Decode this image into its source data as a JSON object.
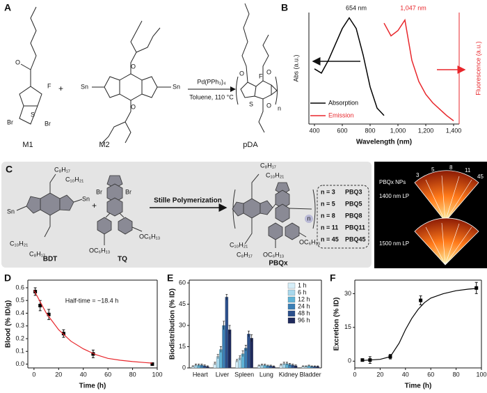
{
  "panel_a": {
    "label": "A",
    "monomers": [
      "M1",
      "M2"
    ],
    "product": "pDA",
    "plus": "+",
    "catalyst": "Pd(PPh₃)₄",
    "conditions": "Toluene, 110 °C",
    "atoms": [
      "F",
      "S",
      "Br",
      "Br",
      "O",
      "O",
      "O",
      "Sn",
      "Sn",
      "O",
      "F",
      "S",
      "O",
      "O",
      "n"
    ]
  },
  "panel_c": {
    "label": "C",
    "monomers": [
      "BDT",
      "TQ"
    ],
    "plus": "+",
    "reaction": "Stille Polymerization",
    "product": "PBQx",
    "variants": [
      [
        "n = 3",
        "PBQ3"
      ],
      [
        "n = 5",
        "PBQ5"
      ],
      [
        "n = 8",
        "PBQ8"
      ],
      [
        "n = 11",
        "PBQ11"
      ],
      [
        "n = 45",
        "PBQ45"
      ]
    ],
    "groups": [
      "C₈H₁₇",
      "C₁₀H₂₁",
      "C₁₀H₂₁",
      "C₈H₁₇",
      "Sn",
      "Sn",
      "Br",
      "Br",
      "OC₆H₁₃",
      "OC₆H₁₃",
      "C₈H₁₇",
      "C₁₀H₂₁",
      "C₁₀H₂₁",
      "C₈H₁₇",
      "OC₆H₁₃",
      "OC₆H₁₃",
      "n"
    ]
  },
  "inset": {
    "title": "PBQx NPs",
    "filters": [
      "1400 nm LP",
      "1500 nm LP"
    ],
    "numbers": [
      "3",
      "5",
      "8",
      "11",
      "45"
    ]
  },
  "chart_data": [
    {
      "type": "line",
      "label": "B",
      "xlabel": "Wavelength (nm)",
      "ylabel": "Abs (a.u.)",
      "y2label": "Fluorescence (a.u.)",
      "annotations": [
        "654 nm",
        "1,047 nm"
      ],
      "x": [
        400,
        450,
        500,
        550,
        600,
        650,
        700,
        750,
        800,
        850,
        900,
        950,
        1000,
        1050,
        1100,
        1150,
        1200,
        1250,
        1300,
        1350,
        1400
      ],
      "xlim": [
        360,
        1440
      ],
      "xticks": [
        400,
        600,
        800,
        {
          "value": 1000,
          "label": "1,000"
        },
        {
          "value": 1200,
          "label": "1,200"
        },
        {
          "value": 1400,
          "label": "1,400"
        }
      ],
      "ylim": [
        0,
        1.05
      ],
      "y2lim": [
        0,
        1.05
      ],
      "series": [
        {
          "name": "Absorption",
          "color": "#000000",
          "values": [
            0.52,
            0.48,
            0.6,
            0.75,
            0.9,
            1.0,
            0.9,
            0.65,
            0.35,
            0.15,
            0.08,
            null,
            null,
            null,
            null,
            null,
            null,
            null,
            null,
            null,
            null
          ]
        },
        {
          "name": "Emission",
          "color": "#e8262b",
          "axis": "y2",
          "values": [
            null,
            null,
            null,
            null,
            null,
            null,
            null,
            null,
            null,
            null,
            0.95,
            0.83,
            0.88,
            0.98,
            0.6,
            0.4,
            0.28,
            0.2,
            0.14,
            0.08,
            0.03
          ]
        }
      ]
    },
    {
      "type": "scatter",
      "label": "D",
      "xlabel": "Time (h)",
      "ylabel": "Blood (% ID/g)",
      "annotation": "Half-time = ~18.4 h",
      "xlim": [
        -5,
        100
      ],
      "xticks": [
        0,
        20,
        40,
        60,
        80,
        100
      ],
      "ylim": [
        -0.03,
        0.66
      ],
      "yticks": [
        {
          "value": 0,
          "label": "0.0"
        },
        0.1,
        0.2,
        0.3,
        0.4,
        0.5,
        0.6
      ],
      "series": [
        {
          "color": "#000000",
          "x": [
            1,
            5,
            12,
            24,
            48,
            96
          ],
          "values": [
            0.57,
            0.46,
            0.39,
            0.24,
            0.08,
            0.0
          ],
          "errors": [
            0.03,
            0.04,
            0.04,
            0.03,
            0.03,
            0.005
          ]
        },
        {
          "color": "#e8262b",
          "kind": "line",
          "x": [
            0,
            10,
            20,
            30,
            40,
            50,
            60,
            70,
            80,
            90,
            96
          ],
          "values": [
            0.58,
            0.4,
            0.27,
            0.18,
            0.12,
            0.075,
            0.045,
            0.03,
            0.02,
            0.012,
            0.008
          ]
        }
      ]
    },
    {
      "type": "bar",
      "label": "E",
      "ylabel": "Biodistribution (% ID)",
      "categories": [
        "Heart",
        "Liver",
        "Spleen",
        "Lung",
        "Kidney",
        "Bladder"
      ],
      "ylim": [
        0,
        62
      ],
      "yticks": [
        0,
        15,
        30,
        45,
        60
      ],
      "legend": "top-right",
      "series": [
        {
          "name": "1 h",
          "color": "#d6eef8",
          "values": [
            1,
            3,
            5,
            1.5,
            2,
            1
          ],
          "errors": [
            0.5,
            1,
            1,
            0.5,
            0.8,
            0.4
          ]
        },
        {
          "name": "6 h",
          "color": "#a8d8ec",
          "values": [
            2,
            8,
            7,
            2,
            3,
            1
          ],
          "errors": [
            0.8,
            1.5,
            1.5,
            0.6,
            1,
            0.4
          ]
        },
        {
          "name": "12 h",
          "color": "#5fb3d6",
          "values": [
            2,
            13,
            10,
            2,
            3,
            1.5
          ],
          "errors": [
            0.8,
            2,
            2,
            0.6,
            1,
            0.5
          ]
        },
        {
          "name": "24 h",
          "color": "#3a7fb5",
          "values": [
            2,
            30,
            14,
            1.5,
            2.5,
            1
          ],
          "errors": [
            0.8,
            3,
            2,
            0.5,
            0.8,
            0.4
          ]
        },
        {
          "name": "48 h",
          "color": "#2b4f8c",
          "values": [
            1.5,
            50,
            24,
            1.5,
            2,
            1
          ],
          "errors": [
            0.6,
            2,
            2,
            0.5,
            0.8,
            0.4
          ]
        },
        {
          "name": "96 h",
          "color": "#1f2a5c",
          "values": [
            1,
            27,
            21,
            1,
            1.5,
            1
          ],
          "errors": [
            0.5,
            3,
            2.5,
            0.4,
            0.6,
            0.4
          ]
        }
      ]
    },
    {
      "type": "scatter",
      "label": "F",
      "xlabel": "Time (h)",
      "ylabel": "Excretion (% ID)",
      "xlim": [
        0,
        100
      ],
      "xticks": [
        0,
        20,
        40,
        60,
        80,
        100
      ],
      "ylim": [
        -3,
        36
      ],
      "yticks": [
        0,
        15,
        30
      ],
      "series": [
        {
          "color": "#000000",
          "x": [
            6,
            12,
            28,
            52,
            96
          ],
          "values": [
            0.5,
            0.5,
            2,
            27,
            32.5
          ],
          "errors": [
            0.5,
            1.5,
            1,
            2,
            2.5
          ]
        },
        {
          "color": "#000000",
          "kind": "line",
          "x": [
            6,
            20,
            28,
            35,
            40,
            45,
            50,
            55,
            60,
            70,
            80,
            90,
            96
          ],
          "values": [
            0.3,
            0.8,
            2,
            8,
            14,
            19,
            23,
            26,
            28,
            30,
            31.3,
            32,
            32.3
          ]
        }
      ]
    }
  ]
}
